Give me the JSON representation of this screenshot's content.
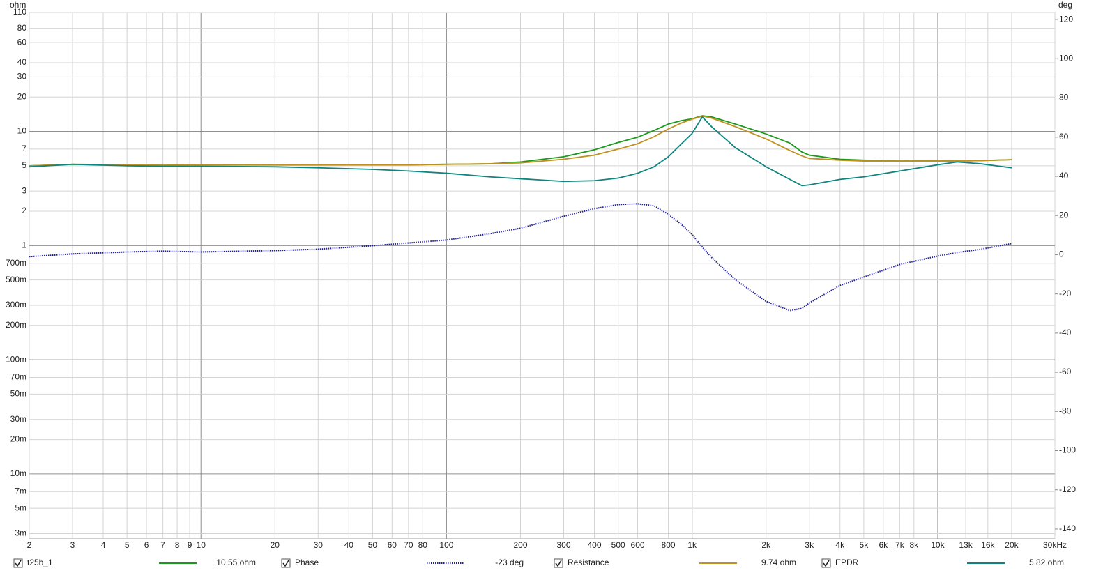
{
  "chart_data": {
    "type": "line",
    "y_title": "ohm",
    "y2_title": "deg",
    "x_scale": "log",
    "y_scale": "log",
    "grid": true,
    "xlim": [
      2,
      30000
    ],
    "xticks": [
      2,
      3,
      4,
      5,
      6,
      7,
      8,
      9,
      10,
      20,
      30,
      40,
      50,
      60,
      70,
      80,
      100,
      200,
      300,
      400,
      500,
      600,
      800,
      {
        "value": 1000,
        "label": "1k"
      },
      {
        "value": 2000,
        "label": "2k"
      },
      {
        "value": 3000,
        "label": "3k"
      },
      {
        "value": 4000,
        "label": "4k"
      },
      {
        "value": 5000,
        "label": "5k"
      },
      {
        "value": 6000,
        "label": "6k"
      },
      {
        "value": 7000,
        "label": "7k"
      },
      {
        "value": 8000,
        "label": "8k"
      },
      {
        "value": 10000,
        "label": "10k"
      },
      {
        "value": 13000,
        "label": "13k"
      },
      {
        "value": 16000,
        "label": "16k"
      },
      {
        "value": 20000,
        "label": "20k"
      },
      {
        "value": 30000,
        "label": "30kHz"
      }
    ],
    "ylim": [
      0.0027,
      110
    ],
    "yticks": [
      110,
      80,
      60,
      40,
      30,
      20,
      10,
      7,
      5,
      3,
      2,
      1,
      {
        "value": 0.7,
        "label": "700m"
      },
      {
        "value": 0.5,
        "label": "500m"
      },
      {
        "value": 0.3,
        "label": "300m"
      },
      {
        "value": 0.2,
        "label": "200m"
      },
      {
        "value": 0.1,
        "label": "100m"
      },
      {
        "value": 0.07,
        "label": "70m"
      },
      {
        "value": 0.05,
        "label": "50m"
      },
      {
        "value": 0.03,
        "label": "30m"
      },
      {
        "value": 0.02,
        "label": "20m"
      },
      {
        "value": 0.01,
        "label": "10m"
      },
      {
        "value": 0.007,
        "label": "7m"
      },
      {
        "value": 0.005,
        "label": "5m"
      },
      {
        "value": 0.003,
        "label": "3m"
      }
    ],
    "y2lim": [
      -145,
      123.6
    ],
    "y2ticks": [
      120,
      100,
      80,
      60,
      40,
      20,
      0,
      -20,
      -40,
      -60,
      -80,
      -100,
      -120,
      -140
    ],
    "x": [
      2,
      3,
      5,
      7,
      10,
      20,
      30,
      50,
      70,
      100,
      150,
      200,
      300,
      400,
      500,
      600,
      700,
      800,
      900,
      1000,
      1100,
      1200,
      1500,
      2000,
      2500,
      2800,
      3000,
      4000,
      5000,
      7000,
      10000,
      12000,
      15000,
      20000
    ],
    "series": [
      {
        "name": "t25b_1",
        "readout": "10.55 ohm",
        "color": "#1a9a1a",
        "line_style": "solid",
        "values": [
          5.0,
          5.15,
          5.1,
          5.05,
          5.1,
          5.1,
          5.1,
          5.1,
          5.1,
          5.15,
          5.2,
          5.4,
          6.0,
          6.9,
          8.0,
          8.9,
          10.2,
          11.6,
          12.4,
          12.9,
          13.7,
          13.4,
          11.6,
          9.5,
          7.9,
          6.6,
          6.2,
          5.7,
          5.6,
          5.5,
          5.5,
          5.5,
          5.55,
          5.65
        ]
      },
      {
        "name": "Phase",
        "readout": "-23 deg",
        "color": "#2020a0",
        "line_style": "dotted",
        "axis": "y2",
        "values": [
          -1,
          0.4,
          1.4,
          1.8,
          1.4,
          2.1,
          2.8,
          4.6,
          6,
          7.5,
          10.7,
          13.5,
          19.6,
          23.5,
          25.6,
          26,
          25,
          20.6,
          15.7,
          10.3,
          3.9,
          -1.4,
          -12.8,
          -23.8,
          -28.5,
          -27.4,
          -24.6,
          -15.7,
          -11.4,
          -5,
          -0.7,
          1.1,
          2.8,
          5.7
        ]
      },
      {
        "name": "Resistance",
        "readout": "9.74 ohm",
        "color": "#c09020",
        "line_style": "solid",
        "values": [
          5.0,
          5.15,
          5.1,
          5.05,
          5.1,
          5.1,
          5.1,
          5.1,
          5.1,
          5.15,
          5.2,
          5.3,
          5.7,
          6.2,
          7.0,
          7.8,
          9.0,
          10.5,
          11.8,
          12.8,
          13.6,
          13.1,
          11.0,
          8.6,
          6.8,
          6.1,
          5.8,
          5.6,
          5.5,
          5.5,
          5.5,
          5.5,
          5.55,
          5.65
        ]
      },
      {
        "name": "EPDR",
        "readout": "5.82 ohm",
        "color": "#10857f",
        "line_style": "solid",
        "values": [
          4.9,
          5.15,
          5.0,
          4.95,
          4.95,
          4.9,
          4.8,
          4.65,
          4.5,
          4.3,
          4.0,
          3.85,
          3.65,
          3.7,
          3.9,
          4.3,
          4.9,
          6.0,
          7.7,
          9.6,
          13.4,
          11.0,
          7.2,
          4.9,
          3.8,
          3.35,
          3.4,
          3.8,
          4.0,
          4.5,
          5.1,
          5.4,
          5.2,
          4.8
        ]
      }
    ]
  }
}
